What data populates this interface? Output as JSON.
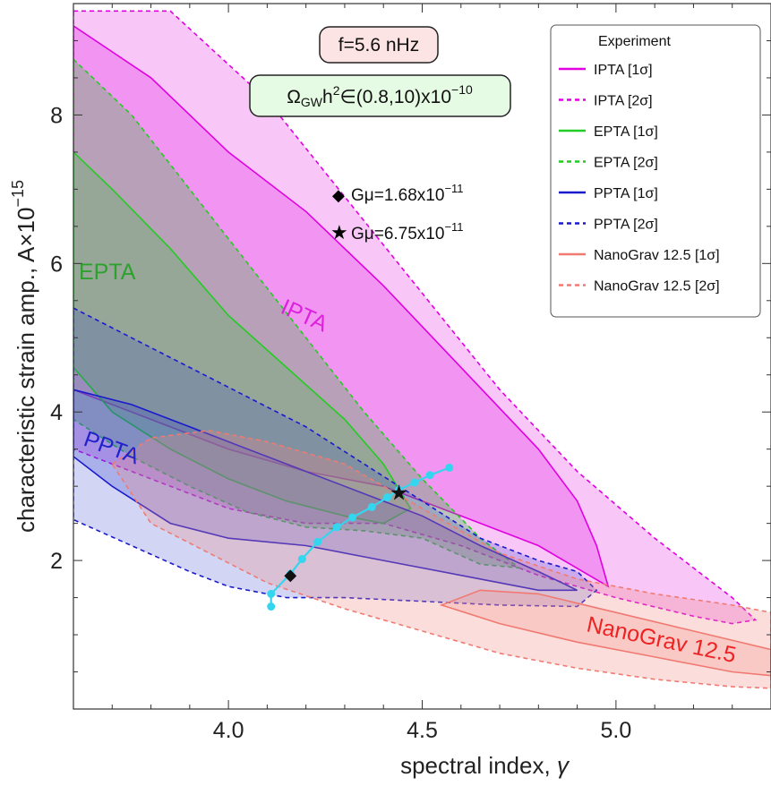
{
  "chart_data": {
    "type": "area",
    "xlabel": "spectral index, γ",
    "ylabel": "characteristic strain amp., A×10⁻¹⁵",
    "xlim": [
      3.6,
      5.4
    ],
    "ylim": [
      0.0,
      9.5
    ],
    "x_ticks": [
      4.0,
      4.5,
      5.0
    ],
    "x_tick_labels": [
      "4.0",
      "4.5",
      "5.0"
    ],
    "y_ticks": [
      2,
      4,
      6,
      8
    ],
    "y_tick_labels": [
      "2",
      "4",
      "6",
      "8"
    ],
    "annotation_frequency": "f=5.6 nHz",
    "annotation_omega": "Ω_GW h² ∈(0.8,10)x10⁻¹⁰",
    "legend": {
      "title": "Experiment",
      "placement": "top-right",
      "entries": [
        {
          "label": "IPTA [1σ]",
          "color": "#e000e0",
          "dash": "solid"
        },
        {
          "label": "IPTA [2σ]",
          "color": "#e000e0",
          "dash": "dashed"
        },
        {
          "label": "EPTA [1σ]",
          "color": "#22cc22",
          "dash": "solid"
        },
        {
          "label": "EPTA [2σ]",
          "color": "#22cc22",
          "dash": "dashed"
        },
        {
          "label": "PPTA [1σ]",
          "color": "#1a1acc",
          "dash": "solid"
        },
        {
          "label": "PPTA [2σ]",
          "color": "#1a1acc",
          "dash": "dashed"
        },
        {
          "label": "NanoGrav 12.5 [1σ]",
          "color": "#f07a72",
          "dash": "solid"
        },
        {
          "label": "NanoGrav 12.5 [2σ]",
          "color": "#f07a72",
          "dash": "dashed"
        }
      ]
    },
    "region_labels": {
      "epta": "EPTA",
      "ipta": "IPTA",
      "ppta": "PPTA",
      "nanograv": "NanoGrav 12.5"
    },
    "markers": [
      {
        "symbol": "◆",
        "label": "Gμ=1.68x10⁻¹¹",
        "x": 4.16,
        "y": 1.82
      },
      {
        "symbol": "★",
        "label": "Gμ=6.75x10⁻¹¹",
        "x": 4.44,
        "y": 2.9
      }
    ],
    "series": [
      {
        "name": "IPTA [2σ]",
        "color": "#e000e0",
        "dash": "dashed",
        "fill": "#e000e0",
        "opacity": 0.22,
        "upper": [
          [
            3.6,
            9.4
          ],
          [
            3.85,
            9.4
          ],
          [
            4.1,
            8.2
          ],
          [
            4.3,
            6.9
          ],
          [
            4.5,
            5.6
          ],
          [
            4.7,
            4.3
          ],
          [
            4.9,
            3.2
          ],
          [
            5.1,
            2.3
          ],
          [
            5.3,
            1.5
          ],
          [
            5.36,
            1.2
          ]
        ],
        "lower": [
          [
            3.6,
            3.5
          ],
          [
            3.8,
            3.1
          ],
          [
            4.0,
            2.7
          ],
          [
            4.2,
            2.5
          ],
          [
            4.4,
            2.5
          ],
          [
            4.6,
            2.2
          ],
          [
            4.8,
            1.8
          ],
          [
            5.0,
            1.5
          ],
          [
            5.2,
            1.25
          ],
          [
            5.3,
            1.15
          ],
          [
            5.36,
            1.2
          ]
        ]
      },
      {
        "name": "IPTA [1σ]",
        "color": "#e000e0",
        "dash": "solid",
        "fill": "#e000e0",
        "opacity": 0.25,
        "upper": [
          [
            3.6,
            9.2
          ],
          [
            3.8,
            8.5
          ],
          [
            4.0,
            7.5
          ],
          [
            4.2,
            6.7
          ],
          [
            4.4,
            5.7
          ],
          [
            4.6,
            4.6
          ],
          [
            4.8,
            3.5
          ],
          [
            4.9,
            2.8
          ],
          [
            4.95,
            2.2
          ],
          [
            4.98,
            1.65
          ]
        ],
        "lower": [
          [
            3.6,
            4.3
          ],
          [
            3.8,
            3.9
          ],
          [
            4.0,
            3.5
          ],
          [
            4.2,
            3.2
          ],
          [
            4.4,
            3.0
          ],
          [
            4.6,
            2.6
          ],
          [
            4.8,
            2.2
          ],
          [
            4.98,
            1.65
          ]
        ]
      },
      {
        "name": "EPTA [2σ]",
        "color": "#22cc22",
        "dash": "dashed",
        "fill": "#33bb33",
        "opacity": 0.3,
        "upper": [
          [
            3.6,
            8.75
          ],
          [
            3.75,
            8.0
          ],
          [
            3.9,
            7.0
          ],
          [
            4.05,
            6.0
          ],
          [
            4.2,
            5.0
          ],
          [
            4.35,
            4.0
          ],
          [
            4.5,
            3.1
          ],
          [
            4.65,
            2.3
          ],
          [
            4.75,
            1.9
          ]
        ],
        "lower": [
          [
            3.6,
            3.9
          ],
          [
            3.75,
            3.4
          ],
          [
            3.9,
            3.0
          ],
          [
            4.05,
            2.65
          ],
          [
            4.2,
            2.45
          ],
          [
            4.35,
            2.4
          ],
          [
            4.5,
            2.3
          ],
          [
            4.65,
            1.95
          ],
          [
            4.75,
            1.9
          ]
        ]
      },
      {
        "name": "EPTA [1σ]",
        "color": "#22cc22",
        "dash": "solid",
        "fill": "#33bb33",
        "opacity": 0.25,
        "upper": [
          [
            3.6,
            7.5
          ],
          [
            3.7,
            7.0
          ],
          [
            3.85,
            6.2
          ],
          [
            4.0,
            5.3
          ],
          [
            4.15,
            4.6
          ],
          [
            4.3,
            3.9
          ],
          [
            4.4,
            3.3
          ],
          [
            4.47,
            2.7
          ]
        ],
        "lower": [
          [
            3.6,
            4.6
          ],
          [
            3.7,
            4.0
          ],
          [
            3.85,
            3.5
          ],
          [
            4.0,
            3.1
          ],
          [
            4.15,
            2.8
          ],
          [
            4.3,
            2.6
          ],
          [
            4.4,
            2.5
          ],
          [
            4.47,
            2.7
          ]
        ]
      },
      {
        "name": "PPTA [2σ]",
        "color": "#1a1acc",
        "dash": "dashed",
        "fill": "#3344cc",
        "opacity": 0.22,
        "upper": [
          [
            3.6,
            5.4
          ],
          [
            3.75,
            5.0
          ],
          [
            3.9,
            4.6
          ],
          [
            4.05,
            4.2
          ],
          [
            4.2,
            3.8
          ],
          [
            4.35,
            3.3
          ],
          [
            4.5,
            2.8
          ],
          [
            4.65,
            2.3
          ],
          [
            4.8,
            2.0
          ],
          [
            4.9,
            1.85
          ],
          [
            4.95,
            1.6
          ]
        ],
        "lower": [
          [
            3.6,
            2.55
          ],
          [
            3.75,
            2.2
          ],
          [
            3.9,
            1.85
          ],
          [
            4.0,
            1.65
          ],
          [
            4.15,
            1.5
          ],
          [
            4.3,
            1.5
          ],
          [
            4.5,
            1.45
          ],
          [
            4.7,
            1.4
          ],
          [
            4.9,
            1.38
          ],
          [
            4.95,
            1.6
          ]
        ]
      },
      {
        "name": "PPTA [1σ]",
        "color": "#1a1acc",
        "dash": "solid",
        "fill": "#3344cc",
        "opacity": 0.25,
        "upper": [
          [
            3.6,
            4.3
          ],
          [
            3.75,
            4.1
          ],
          [
            3.9,
            3.8
          ],
          [
            4.05,
            3.5
          ],
          [
            4.2,
            3.2
          ],
          [
            4.35,
            2.9
          ],
          [
            4.5,
            2.6
          ],
          [
            4.65,
            2.2
          ],
          [
            4.8,
            1.85
          ],
          [
            4.9,
            1.6
          ]
        ],
        "lower": [
          [
            3.6,
            3.4
          ],
          [
            3.7,
            3.0
          ],
          [
            3.85,
            2.5
          ],
          [
            4.0,
            2.3
          ],
          [
            4.2,
            2.2
          ],
          [
            4.4,
            2.0
          ],
          [
            4.6,
            1.8
          ],
          [
            4.8,
            1.6
          ],
          [
            4.9,
            1.6
          ]
        ]
      },
      {
        "name": "NanoGrav 12.5 [2σ]",
        "color": "#f07a72",
        "dash": "dashed",
        "fill": "#f28a82",
        "opacity": 0.28,
        "upper": [
          [
            3.7,
            3.3
          ],
          [
            3.8,
            3.65
          ],
          [
            3.95,
            3.75
          ],
          [
            4.1,
            3.6
          ],
          [
            4.3,
            3.3
          ],
          [
            4.5,
            2.7
          ],
          [
            4.7,
            2.1
          ],
          [
            4.9,
            1.75
          ],
          [
            5.1,
            1.55
          ],
          [
            5.3,
            1.4
          ],
          [
            5.4,
            1.3
          ]
        ],
        "lower": [
          [
            3.7,
            3.3
          ],
          [
            3.8,
            2.5
          ],
          [
            3.95,
            2.1
          ],
          [
            4.1,
            1.7
          ],
          [
            4.3,
            1.35
          ],
          [
            4.5,
            1.05
          ],
          [
            4.7,
            0.75
          ],
          [
            4.9,
            0.55
          ],
          [
            5.1,
            0.4
          ],
          [
            5.3,
            0.3
          ],
          [
            5.4,
            0.28
          ]
        ]
      },
      {
        "name": "NanoGrav 12.5 [1σ]",
        "color": "#f07a72",
        "dash": "solid",
        "fill": "#f28a82",
        "opacity": 0.25,
        "upper": [
          [
            4.55,
            1.4
          ],
          [
            4.65,
            1.6
          ],
          [
            4.8,
            1.55
          ],
          [
            5.0,
            1.3
          ],
          [
            5.2,
            1.05
          ],
          [
            5.4,
            0.8
          ]
        ],
        "lower": [
          [
            4.55,
            1.4
          ],
          [
            4.7,
            1.15
          ],
          [
            4.9,
            0.9
          ],
          [
            5.1,
            0.7
          ],
          [
            5.3,
            0.5
          ],
          [
            5.4,
            0.45
          ]
        ]
      }
    ],
    "cosmic_string_curve": {
      "color": "#33d6ee",
      "points": [
        [
          4.11,
          1.38
        ],
        [
          4.11,
          1.55
        ],
        [
          4.16,
          1.82
        ],
        [
          4.19,
          2.02
        ],
        [
          4.23,
          2.25
        ],
        [
          4.28,
          2.45
        ],
        [
          4.32,
          2.58
        ],
        [
          4.37,
          2.72
        ],
        [
          4.41,
          2.85
        ],
        [
          4.44,
          2.95
        ],
        [
          4.48,
          3.05
        ],
        [
          4.52,
          3.15
        ],
        [
          4.57,
          3.25
        ]
      ]
    }
  }
}
